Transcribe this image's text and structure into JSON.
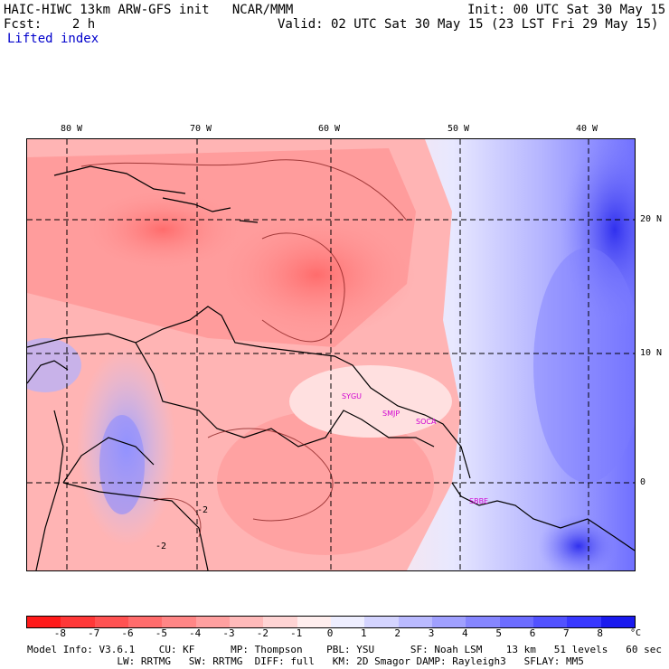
{
  "header": {
    "title": "HAIC-HIWC 13km ARW-GFS init   NCAR/MMM",
    "init": "Init: 00 UTC Sat 30 May 15",
    "fcst": "Fcst:    2 h",
    "valid": "Valid: 02 UTC Sat 30 May 15 (23 LST Fri 29 May 15)",
    "field": "Lifted index"
  },
  "axes": {
    "lon_labels": [
      "80 W",
      "70 W",
      "60 W",
      "50 W",
      "40 W"
    ],
    "lat_labels": [
      "20 N",
      "10 N",
      "0"
    ]
  },
  "contour_labels": [
    "-2",
    "-2"
  ],
  "stations": [
    "SYGU",
    "SMJP",
    "SOCA",
    "SBBE"
  ],
  "colorbar": {
    "labels": [
      "-8",
      "-7",
      "-6",
      "-5",
      "-4",
      "-3",
      "-2",
      "-1",
      "0",
      "1",
      "2",
      "3",
      "4",
      "5",
      "6",
      "7",
      "8"
    ],
    "unit": "°C",
    "colors": [
      "#ff1a1a",
      "#ff3838",
      "#ff5252",
      "#ff6c6c",
      "#ff8686",
      "#ffa0a0",
      "#ffbaba",
      "#ffd4d4",
      "#ffeeee",
      "#eeeeff",
      "#d4d4ff",
      "#babaff",
      "#a0a0ff",
      "#8686ff",
      "#6c6cff",
      "#5252ff",
      "#3838ff",
      "#1a1aee"
    ]
  },
  "model_info": {
    "line1": "Model Info: V3.6.1    CU: KF      MP: Thompson    PBL: YSU      SF: Noah LSM    13 km   51 levels   60 sec",
    "line2": "               LW: RRTMG   SW: RRTMG  DIFF: full   KM: 2D Smagor DAMP: Rayleigh3   SFLAY: MM5"
  },
  "colors": {
    "station_label": "#d000d0",
    "grid_line": "#000000",
    "coastline": "#000000"
  }
}
